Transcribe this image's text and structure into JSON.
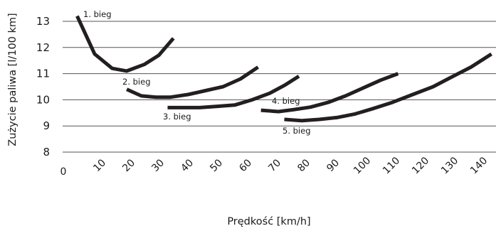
{
  "chart_data": {
    "type": "line",
    "xlabel": "Prędkość [km/h]",
    "ylabel": "Zużycie paliwa [l/100 km]",
    "ylim": [
      8,
      13.5
    ],
    "xlim": [
      0,
      150
    ],
    "y_ticks": [
      "8",
      "9",
      "10",
      "11",
      "12",
      "13"
    ],
    "x_ticks": [
      "0",
      "10",
      "20",
      "30",
      "40",
      "50",
      "60",
      "70",
      "80",
      "90",
      "100",
      "110",
      "120",
      "130",
      "140"
    ],
    "grid": "horizontal",
    "line_color": "#231f20",
    "series": [
      {
        "name": "1. bieg",
        "x": [
          4,
          10,
          16,
          21,
          27,
          32,
          37
        ],
        "y": [
          13.2,
          11.75,
          11.2,
          11.1,
          11.35,
          11.7,
          12.35
        ]
      },
      {
        "name": "2. bieg",
        "x": [
          21,
          26,
          31,
          36,
          42,
          48,
          54,
          60,
          66
        ],
        "y": [
          10.4,
          10.15,
          10.1,
          10.1,
          10.2,
          10.35,
          10.5,
          10.8,
          11.25
        ]
      },
      {
        "name": "3. bieg",
        "x": [
          35,
          40,
          46,
          52,
          58,
          64,
          70,
          75,
          80
        ],
        "y": [
          9.7,
          9.7,
          9.7,
          9.75,
          9.8,
          10.0,
          10.25,
          10.55,
          10.9
        ]
      },
      {
        "name": "4. bieg",
        "x": [
          67,
          73,
          78,
          84,
          90,
          96,
          102,
          108,
          114
        ],
        "y": [
          9.6,
          9.55,
          9.62,
          9.72,
          9.9,
          10.15,
          10.45,
          10.75,
          11.0
        ]
      },
      {
        "name": "5. bieg",
        "x": [
          75,
          81,
          87,
          93,
          99,
          105,
          112,
          119,
          126,
          132,
          139,
          146
        ],
        "y": [
          9.25,
          9.2,
          9.25,
          9.32,
          9.45,
          9.65,
          9.9,
          10.2,
          10.5,
          10.85,
          11.25,
          11.75
        ]
      }
    ]
  }
}
